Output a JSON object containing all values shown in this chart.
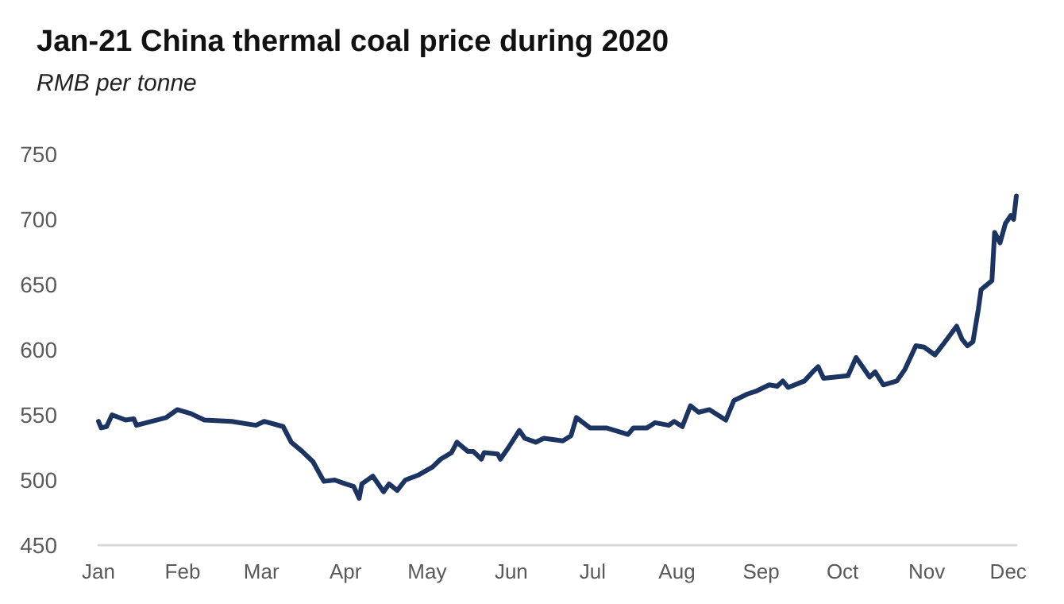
{
  "chart_data": {
    "type": "line",
    "title": "Jan-21 China thermal coal price during 2020",
    "subtitle": "RMB per tonne",
    "x": [
      "--01-01",
      "--01-02",
      "--01-04",
      "--01-06",
      "--01-11",
      "--01-14",
      "--01-15",
      "--01-26",
      "--01-30",
      "--02-04",
      "--02-09",
      "--02-19",
      "--02-28",
      "--03-02",
      "--03-09",
      "--03-12",
      "--03-16",
      "--03-20",
      "--03-24",
      "--03-28",
      "--04-01",
      "--04-04",
      "--04-06",
      "--04-07",
      "--04-11",
      "--04-15",
      "--04-17",
      "--04-20",
      "--04-23",
      "--04-28",
      "--05-03",
      "--05-06",
      "--05-10",
      "--05-12",
      "--05-16",
      "--05-18",
      "--05-21",
      "--05-22",
      "--05-27",
      "--05-28",
      "--05-31",
      "--06-04",
      "--06-06",
      "--06-10",
      "--06-13",
      "--06-20",
      "--06-23",
      "--06-25",
      "--06-30",
      "--07-06",
      "--07-14",
      "--07-16",
      "--07-21",
      "--07-24",
      "--07-29",
      "--07-31",
      "--08-03",
      "--08-06",
      "--08-09",
      "--08-13",
      "--08-19",
      "--08-22",
      "--08-27",
      "--08-30",
      "--09-04",
      "--09-07",
      "--09-09",
      "--09-11",
      "--09-17",
      "--09-20",
      "--09-22",
      "--09-24",
      "--10-03",
      "--10-06",
      "--10-11",
      "--10-13",
      "--10-16",
      "--10-21",
      "--10-24",
      "--10-28",
      "--10-31",
      "--11-04",
      "--11-07",
      "--11-12",
      "--11-14",
      "--11-16",
      "--11-18",
      "--11-20",
      "--11-21",
      "--11-25",
      "--11-26",
      "--11-28",
      "--11-30",
      "--12-02",
      "--12-03",
      "--12-04"
    ],
    "series": [
      {
        "color": "#1c3461",
        "values": [
          545,
          540,
          541,
          550,
          546,
          547,
          542,
          548,
          554,
          551,
          546,
          545,
          542,
          545,
          541,
          529,
          522,
          514,
          499,
          500,
          497,
          495,
          486,
          497,
          503,
          491,
          497,
          492,
          500,
          504,
          510,
          516,
          521,
          529,
          522,
          522,
          516,
          521,
          520,
          516,
          525,
          538,
          532,
          529,
          532,
          530,
          534,
          548,
          540,
          540,
          535,
          540,
          540,
          544,
          542,
          545,
          541,
          557,
          552,
          554,
          546,
          561,
          566,
          568,
          573,
          572,
          576,
          571,
          576,
          583,
          587,
          578,
          580,
          594,
          579,
          583,
          573,
          576,
          585,
          603,
          602,
          596,
          604,
          618,
          608,
          603,
          606,
          631,
          646,
          653,
          690,
          682,
          697,
          703,
          700,
          718
        ]
      }
    ],
    "xlim": [
      "--01-01",
      "--12-04"
    ],
    "xticks": [
      {
        "value": "--01-01",
        "label": "Jan"
      },
      {
        "value": "--02-01",
        "label": "Feb"
      },
      {
        "value": "--03-01",
        "label": "Mar"
      },
      {
        "value": "--04-01",
        "label": "Apr"
      },
      {
        "value": "--05-01",
        "label": "May"
      },
      {
        "value": "--06-01",
        "label": "Jun"
      },
      {
        "value": "--07-01",
        "label": "Jul"
      },
      {
        "value": "--08-01",
        "label": "Aug"
      },
      {
        "value": "--09-01",
        "label": "Sep"
      },
      {
        "value": "--10-01",
        "label": "Oct"
      },
      {
        "value": "--11-01",
        "label": "Nov"
      },
      {
        "value": "--12-01",
        "label": "Dec"
      }
    ],
    "ylim": [
      450,
      750
    ],
    "yticks": [
      450,
      500,
      550,
      600,
      650,
      700,
      750
    ],
    "grid": false,
    "marker": "none",
    "line_style": "solid"
  }
}
